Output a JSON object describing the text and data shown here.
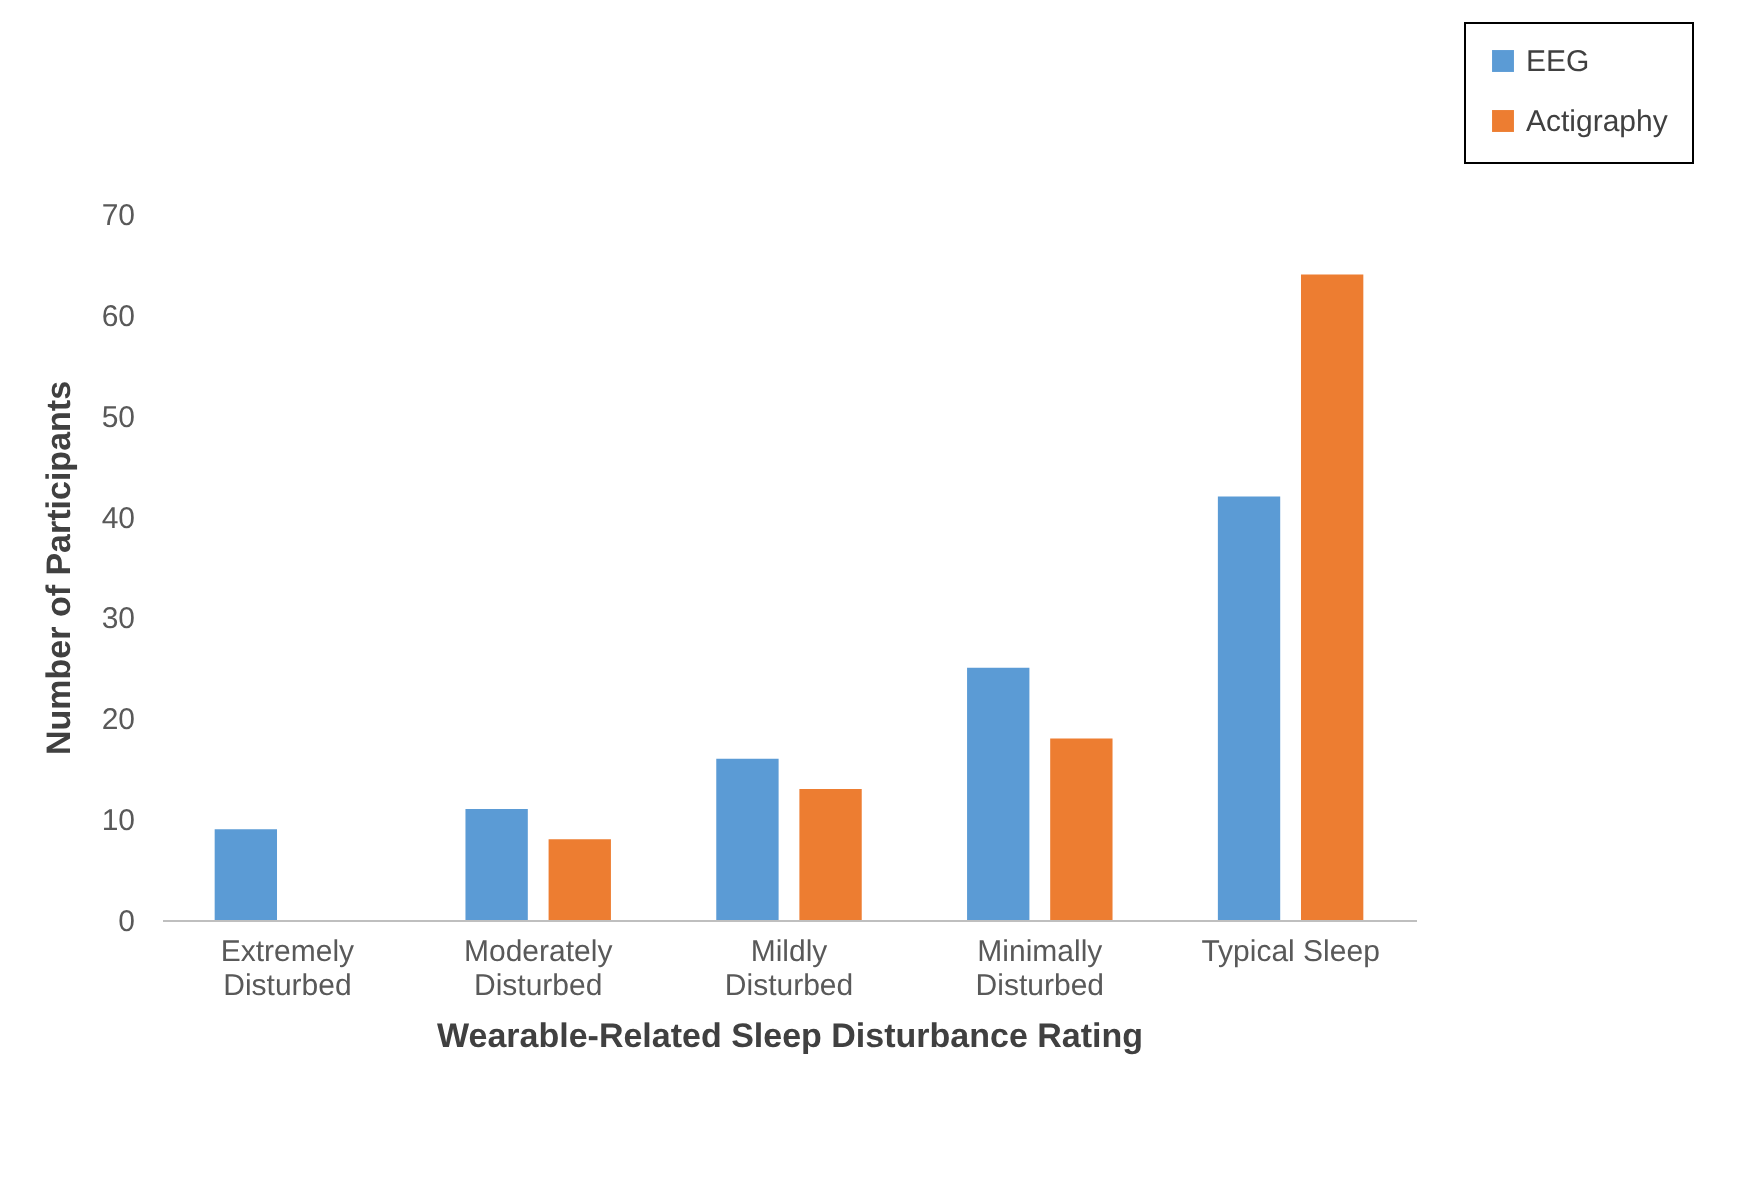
{
  "chart_data": {
    "type": "bar",
    "xlabel": "Wearable-Related Sleep Disturbance Rating",
    "ylabel": "Number of Participants",
    "categories": [
      "Extremely Disturbed",
      "Moderately Disturbed",
      "Mildly Disturbed",
      "Minimally Disturbed",
      "Typical Sleep"
    ],
    "series": [
      {
        "name": "EEG",
        "color": "#5b9bd5",
        "values": [
          9,
          11,
          16,
          25,
          42
        ]
      },
      {
        "name": "Actigraphy",
        "color": "#ed7d31",
        "values": [
          0,
          8,
          13,
          18,
          64
        ]
      }
    ],
    "ylim": [
      0,
      70
    ],
    "yticks": [
      0,
      10,
      20,
      30,
      40,
      50,
      60,
      70
    ],
    "grid": false,
    "legend": "top right"
  }
}
